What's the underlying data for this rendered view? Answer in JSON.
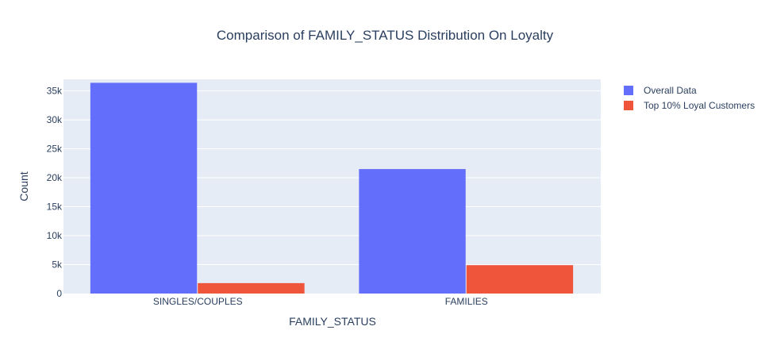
{
  "chart_data": {
    "type": "bar",
    "title": "Comparison of FAMILY_STATUS Distribution On Loyalty",
    "xlabel": "FAMILY_STATUS",
    "ylabel": "Count",
    "categories": [
      "SINGLES/COUPLES",
      "FAMILIES"
    ],
    "series": [
      {
        "name": "Overall Data",
        "values": [
          36400,
          21500
        ],
        "color": "#636efa"
      },
      {
        "name": "Top 10% Loyal Customers",
        "values": [
          1800,
          4900
        ],
        "color": "#ef553b"
      }
    ],
    "ylim": [
      0,
      37000
    ],
    "yticks": [
      0,
      5000,
      10000,
      15000,
      20000,
      25000,
      30000,
      35000
    ],
    "ytick_labels": [
      "0",
      "5k",
      "10k",
      "15k",
      "20k",
      "25k",
      "30k",
      "35k"
    ],
    "grid": true,
    "legend": "top-right",
    "plot_bg": "#e5ecf6"
  }
}
